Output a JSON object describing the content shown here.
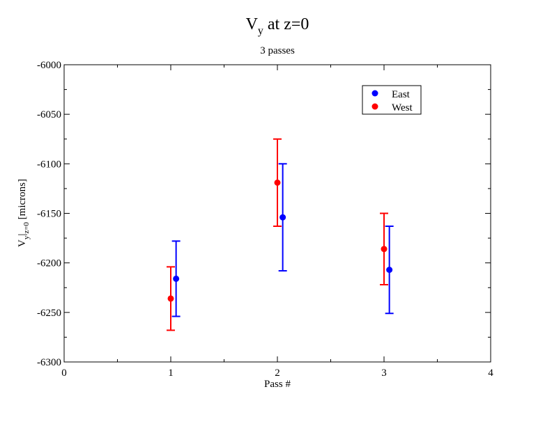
{
  "chart_data": {
    "type": "scatter",
    "title": "V",
    "title_subscript": "y",
    "title_suffix": " at z=0",
    "subtitle": "3 passes",
    "xlabel": "Pass #",
    "ylabel": {
      "base": "V",
      "sub1": "y",
      "bar": "|",
      "sub2": "z=0",
      "unit": " [microns]"
    },
    "xlim": [
      0,
      4
    ],
    "ylim": [
      -6300,
      -6000
    ],
    "x_ticks": [
      "0",
      "1",
      "2",
      "3",
      "4"
    ],
    "y_ticks": [
      "-6300",
      "-6250",
      "-6200",
      "-6150",
      "-6100",
      "-6050",
      "-6000"
    ],
    "grid": false,
    "legend_position": "top-right",
    "series": [
      {
        "name": "East",
        "color": "#0000ff",
        "points": [
          {
            "x": 1.05,
            "y": -6216,
            "err": 38
          },
          {
            "x": 2.05,
            "y": -6154,
            "err": 54
          },
          {
            "x": 3.05,
            "y": -6207,
            "err": 44
          }
        ]
      },
      {
        "name": "West",
        "color": "#ff0000",
        "points": [
          {
            "x": 1.0,
            "y": -6236,
            "err": 32
          },
          {
            "x": 2.0,
            "y": -6119,
            "err": 44
          },
          {
            "x": 3.0,
            "y": -6186,
            "err": 36
          }
        ]
      }
    ]
  }
}
